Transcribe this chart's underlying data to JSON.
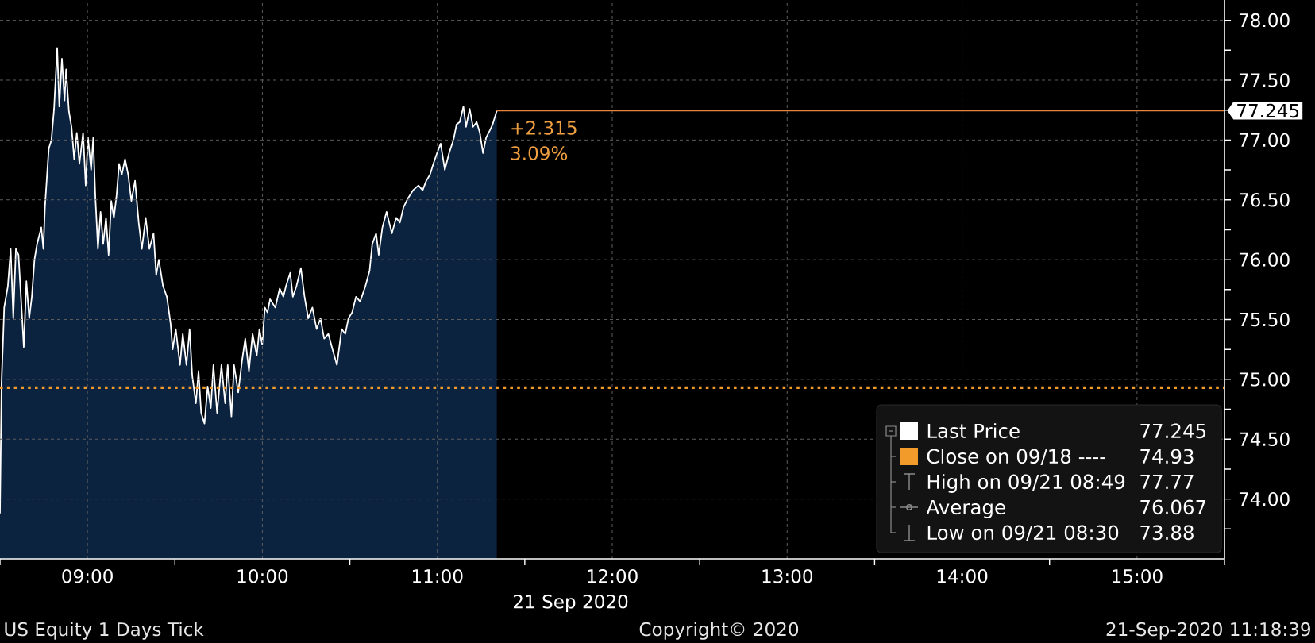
{
  "chart_data": {
    "type": "area",
    "x": [
      8.5,
      8.509,
      8.524,
      8.545,
      8.561,
      8.576,
      8.591,
      8.606,
      8.636,
      8.651,
      8.667,
      8.682,
      8.697,
      8.712,
      8.736,
      8.748,
      8.757,
      8.779,
      8.794,
      8.809,
      8.827,
      8.839,
      8.854,
      8.869,
      8.878,
      8.894,
      8.909,
      8.924,
      8.939,
      8.954,
      8.975,
      8.99,
      9.003,
      9.021,
      9.033,
      9.045,
      9.06,
      9.075,
      9.09,
      9.106,
      9.121,
      9.136,
      9.151,
      9.166,
      9.181,
      9.196,
      9.215,
      9.233,
      9.251,
      9.272,
      9.293,
      9.311,
      9.333,
      9.354,
      9.378,
      9.393,
      9.408,
      9.432,
      9.454,
      9.475,
      9.487,
      9.505,
      9.529,
      9.545,
      9.566,
      9.584,
      9.599,
      9.62,
      9.635,
      9.65,
      9.669,
      9.687,
      9.705,
      9.72,
      9.741,
      9.766,
      9.787,
      9.802,
      9.823,
      9.838,
      9.862,
      9.884,
      9.902,
      9.923,
      9.944,
      9.968,
      9.983,
      9.999,
      10.014,
      10.029,
      10.044,
      10.074,
      10.099,
      10.12,
      10.135,
      10.159,
      10.174,
      10.195,
      10.22,
      10.241,
      10.262,
      10.286,
      10.31,
      10.332,
      10.353,
      10.377,
      10.401,
      10.426,
      10.453,
      10.474,
      10.492,
      10.513,
      10.535,
      10.559,
      10.589,
      10.613,
      10.628,
      10.65,
      10.665,
      10.686,
      10.71,
      10.725,
      10.74,
      10.765,
      10.786,
      10.807,
      10.831,
      10.861,
      10.892,
      10.916,
      10.937,
      10.958,
      10.977,
      10.998,
      11.019,
      11.043,
      11.067,
      11.092,
      11.11,
      11.128,
      11.149,
      11.164,
      11.185,
      11.204,
      11.225,
      11.243,
      11.261,
      11.279,
      11.3,
      11.316,
      11.34
    ],
    "series": [
      {
        "name": "Last Price",
        "color": "#ffffff",
        "values": [
          73.88,
          74.98,
          75.6,
          75.78,
          76.09,
          75.51,
          76.09,
          76.04,
          75.27,
          75.82,
          75.51,
          75.69,
          76.0,
          76.13,
          76.27,
          76.09,
          76.44,
          76.93,
          77.0,
          77.26,
          77.77,
          77.28,
          77.68,
          77.33,
          77.59,
          77.24,
          77.11,
          76.84,
          77.06,
          76.8,
          77.06,
          76.62,
          77.02,
          76.75,
          77.02,
          76.53,
          76.09,
          76.4,
          76.13,
          76.35,
          76.04,
          76.49,
          76.35,
          76.53,
          76.8,
          76.71,
          76.84,
          76.71,
          76.49,
          76.66,
          76.31,
          76.09,
          76.35,
          76.09,
          76.22,
          75.87,
          76.0,
          75.78,
          75.69,
          75.47,
          75.25,
          75.42,
          75.12,
          75.38,
          75.12,
          75.42,
          75.03,
          74.8,
          75.07,
          74.72,
          74.63,
          74.94,
          74.76,
          75.12,
          74.72,
          75.12,
          74.8,
          75.12,
          74.69,
          75.12,
          74.89,
          75.16,
          75.34,
          75.07,
          75.38,
          75.2,
          75.42,
          75.29,
          75.6,
          75.56,
          75.67,
          75.6,
          75.76,
          75.69,
          75.78,
          75.89,
          75.69,
          75.78,
          75.93,
          75.69,
          75.51,
          75.6,
          75.42,
          75.51,
          75.34,
          75.38,
          75.25,
          75.12,
          75.42,
          75.38,
          75.51,
          75.56,
          75.69,
          75.65,
          75.78,
          75.91,
          76.13,
          76.22,
          76.04,
          76.27,
          76.4,
          76.31,
          76.22,
          76.35,
          76.31,
          76.44,
          76.51,
          76.58,
          76.62,
          76.58,
          76.66,
          76.71,
          76.8,
          76.89,
          76.97,
          76.75,
          76.89,
          77.0,
          77.13,
          77.15,
          77.28,
          77.11,
          77.26,
          77.11,
          77.15,
          77.06,
          76.89,
          77.02,
          77.08,
          77.13,
          77.245
        ]
      }
    ],
    "xlim": [
      8.5,
      15.5
    ],
    "ylim": [
      73.5,
      78.17
    ],
    "xticks": [
      {
        "value": 8.5,
        "label": null
      },
      {
        "value": 9,
        "label": "09:00"
      },
      {
        "value": 9.5,
        "label": null
      },
      {
        "value": 10,
        "label": "10:00"
      },
      {
        "value": 10.5,
        "label": null
      },
      {
        "value": 11,
        "label": "11:00"
      },
      {
        "value": 11.5,
        "label": null
      },
      {
        "value": 12,
        "label": "12:00"
      },
      {
        "value": 12.5,
        "label": null
      },
      {
        "value": 13,
        "label": "13:00"
      },
      {
        "value": 13.5,
        "label": null
      },
      {
        "value": 14,
        "label": "14:00"
      },
      {
        "value": 14.5,
        "label": null
      },
      {
        "value": 15,
        "label": "15:00"
      },
      {
        "value": 15.5,
        "label": null
      }
    ],
    "yticks": [
      {
        "value": 73.75,
        "label": null
      },
      {
        "value": 74,
        "label": "74.00"
      },
      {
        "value": 74.25,
        "label": null
      },
      {
        "value": 74.5,
        "label": "74.50"
      },
      {
        "value": 74.75,
        "label": null
      },
      {
        "value": 75,
        "label": "75.00"
      },
      {
        "value": 75.25,
        "label": null
      },
      {
        "value": 75.5,
        "label": "75.50"
      },
      {
        "value": 75.75,
        "label": null
      },
      {
        "value": 76,
        "label": "76.00"
      },
      {
        "value": 76.25,
        "label": null
      },
      {
        "value": 76.5,
        "label": "76.50"
      },
      {
        "value": 76.75,
        "label": null
      },
      {
        "value": 77,
        "label": "77.00"
      },
      {
        "value": 77.25,
        "label": null
      },
      {
        "value": 77.5,
        "label": "77.50"
      },
      {
        "value": 77.75,
        "label": null
      },
      {
        "value": 78,
        "label": "78.00"
      }
    ],
    "xlabel": "21 Sep 2020",
    "ref_lines": [
      {
        "axis": "y",
        "value": 74.93,
        "label": "Close on 09/18 ----",
        "color": "#f29b2a",
        "line_style": "dotted"
      },
      {
        "axis": "y",
        "value": 77.245,
        "label": "77.245",
        "color": "#e8843c",
        "line_style": "solid"
      }
    ],
    "annotations": [
      "77.245",
      "74.93",
      "High on 09/21 08:49",
      "77.77",
      "Average",
      "76.067",
      "Low on 09/21 08:30",
      "73.88",
      "+2.315",
      "3.09%",
      "US Equity 1 Days Tick",
      "Copyright© 2020",
      "21-Sep-2020 11:18:39"
    ],
    "grid": true,
    "legend": "bottom right"
  }
}
